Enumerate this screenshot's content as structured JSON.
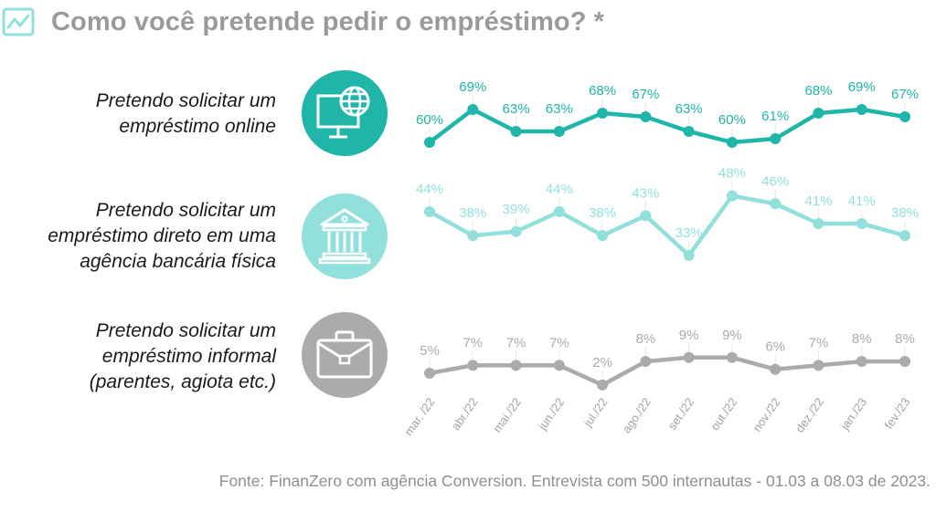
{
  "header": {
    "icon": "trend-chart-icon",
    "title": "Como você pretende pedir o empréstimo? *"
  },
  "colors": {
    "online": "#1fb5a8",
    "agencia": "#92e0dc",
    "informal": "#ababab",
    "title": "#9a9a9a"
  },
  "series_labels": [
    {
      "lines": [
        "Pretendo solicitar um",
        "empréstimo online"
      ],
      "icon": "computer-globe-icon"
    },
    {
      "lines": [
        "Pretendo solicitar um",
        "empréstimo direto em uma",
        "agência bancária física"
      ],
      "icon": "bank-building-icon"
    },
    {
      "lines": [
        "Pretendo solicitar um",
        "empréstimo informal",
        "(parentes, agiota etc.)"
      ],
      "icon": "briefcase-icon"
    }
  ],
  "chart_data": {
    "type": "line",
    "title": "Como você pretende pedir o empréstimo? *",
    "xlabel": "",
    "ylabel": "",
    "categories": [
      "mar. /22",
      "abr./22",
      "mai./22",
      "jun./22",
      "jul./22",
      "ago./22",
      "set./22",
      "out./22",
      "nov./22",
      "dez./22",
      "jan./23",
      "fev./23"
    ],
    "series": [
      {
        "name": "Pretendo solicitar um empréstimo online",
        "values": [
          60,
          69,
          63,
          63,
          68,
          67,
          63,
          60,
          61,
          68,
          69,
          67
        ],
        "labels": [
          "60%",
          "69%",
          "63%",
          "63%",
          "68%",
          "67%",
          "63%",
          "60%",
          "61%",
          "68%",
          "69%",
          "67%"
        ]
      },
      {
        "name": "Pretendo solicitar um empréstimo direto em uma agência bancária física",
        "values": [
          44,
          38,
          39,
          44,
          38,
          43,
          33,
          48,
          46,
          41,
          41,
          38
        ],
        "labels": [
          "44%",
          "38%",
          "39%",
          "44%",
          "38%",
          "43%",
          "33%",
          "48%",
          "46%",
          "41%",
          "41%",
          "38%"
        ]
      },
      {
        "name": "Pretendo solicitar um empréstimo informal (parentes, agiota etc.)",
        "values": [
          5,
          7,
          7,
          7,
          2,
          8,
          9,
          9,
          6,
          7,
          8,
          8
        ],
        "labels": [
          "5%",
          "7%",
          "7%",
          "7%",
          "2%",
          "8%",
          "9%",
          "9%",
          "6%",
          "7%",
          "8%",
          "8%"
        ]
      }
    ],
    "unit": "%",
    "grid": false,
    "legend": "left"
  },
  "footer": "Fonte: FinanZero com agência Conversion. Entrevista com 500 internautas - 01.03 a 08.03 de 2023."
}
